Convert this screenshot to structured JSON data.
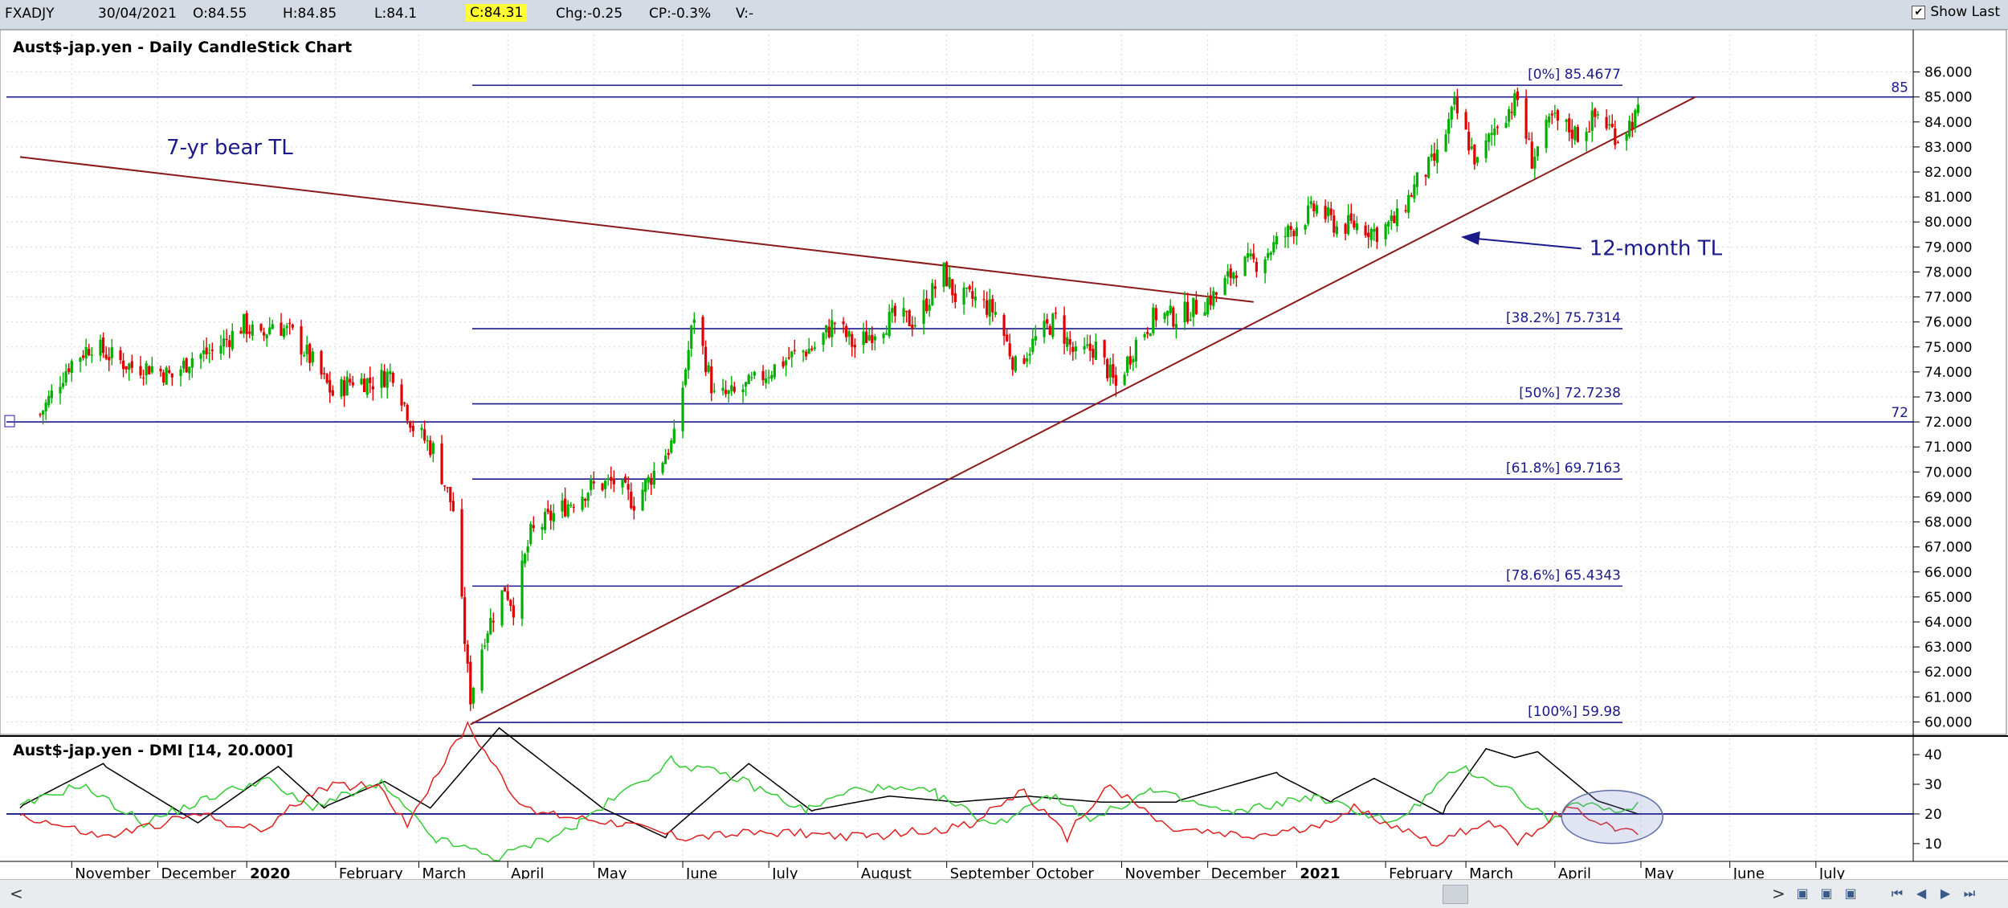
{
  "header": {
    "symbol": "FXADJY",
    "date": "30/04/2021",
    "open": "O:84.55",
    "high": "H:84.85",
    "low": "L:84.1",
    "close": "C:84.31",
    "change": "Chg:-0.25",
    "change_pct": "CP:-0.3%",
    "volume": "V:-",
    "show_last_label": "Show Last",
    "show_last_checked": true
  },
  "colors": {
    "up": "#00b000",
    "down": "#e00000",
    "fib": "#1a1a8c",
    "trendline": "#8b1a1a",
    "arrow": "#1a1a8c",
    "dmi_plus": "#33cc33",
    "dmi_minus": "#e02020",
    "adx": "#000000",
    "highlight": "#ffff33"
  },
  "chart_data": [
    {
      "type": "candlestick",
      "title": "Aust$-jap.yen - Daily CandleStick Chart",
      "ylim": [
        59.5,
        86.5
      ],
      "y_ticks": [
        "86.000",
        "85.000",
        "84.000",
        "83.000",
        "82.000",
        "81.000",
        "80.000",
        "79.000",
        "78.000",
        "77.000",
        "76.000",
        "75.000",
        "74.000",
        "73.000",
        "72.000",
        "71.000",
        "70.000",
        "69.000",
        "68.000",
        "67.000",
        "66.000",
        "65.000",
        "64.000",
        "63.000",
        "62.000",
        "61.000",
        "60.000"
      ],
      "x_month_labels": [
        "November",
        "December",
        "2020",
        "February",
        "March",
        "April",
        "May",
        "June",
        "July",
        "August",
        "September",
        "October",
        "November",
        "December",
        "2021",
        "February",
        "March",
        "April",
        "May",
        "June",
        "July"
      ],
      "close_path": [
        [
          "2019-10-21",
          72.3
        ],
        [
          "2019-10-31",
          74.3
        ],
        [
          "2019-11-08",
          75.1
        ],
        [
          "2019-11-15",
          74.6
        ],
        [
          "2019-11-22",
          74.2
        ],
        [
          "2019-11-29",
          74.2
        ],
        [
          "2019-12-06",
          73.8
        ],
        [
          "2019-12-13",
          74.6
        ],
        [
          "2019-12-20",
          74.8
        ],
        [
          "2019-12-31",
          75.9
        ],
        [
          "2020-01-06",
          75.3
        ],
        [
          "2020-01-10",
          76.0
        ],
        [
          "2020-01-17",
          75.5
        ],
        [
          "2020-01-24",
          74.4
        ],
        [
          "2020-01-31",
          73.1
        ],
        [
          "2020-02-07",
          73.7
        ],
        [
          "2020-02-14",
          73.6
        ],
        [
          "2020-02-21",
          74.0
        ],
        [
          "2020-02-28",
          71.8
        ],
        [
          "2020-03-06",
          70.9
        ],
        [
          "2020-03-13",
          68.5
        ],
        [
          "2020-03-18",
          62.0
        ],
        [
          "2020-03-19",
          61.0
        ],
        [
          "2020-03-24",
          63.5
        ],
        [
          "2020-03-31",
          65.4
        ],
        [
          "2020-04-03",
          64.6
        ],
        [
          "2020-04-09",
          67.5
        ],
        [
          "2020-04-17",
          68.3
        ],
        [
          "2020-04-24",
          68.9
        ],
        [
          "2020-04-30",
          69.4
        ],
        [
          "2020-05-08",
          69.6
        ],
        [
          "2020-05-15",
          68.8
        ],
        [
          "2020-05-22",
          70.0
        ],
        [
          "2020-05-29",
          71.3
        ],
        [
          "2020-06-05",
          76.3
        ],
        [
          "2020-06-12",
          73.0
        ],
        [
          "2020-06-19",
          73.1
        ],
        [
          "2020-06-26",
          73.6
        ],
        [
          "2020-07-03",
          74.2
        ],
        [
          "2020-07-10",
          74.7
        ],
        [
          "2020-07-17",
          75.0
        ],
        [
          "2020-07-24",
          76.0
        ],
        [
          "2020-07-31",
          75.0
        ],
        [
          "2020-08-07",
          75.7
        ],
        [
          "2020-08-14",
          76.2
        ],
        [
          "2020-08-21",
          76.0
        ],
        [
          "2020-08-31",
          78.0
        ],
        [
          "2020-09-04",
          77.0
        ],
        [
          "2020-09-11",
          76.9
        ],
        [
          "2020-09-18",
          76.4
        ],
        [
          "2020-09-25",
          74.2
        ],
        [
          "2020-10-02",
          75.3
        ],
        [
          "2020-10-09",
          76.1
        ],
        [
          "2020-10-16",
          74.6
        ],
        [
          "2020-10-23",
          75.0
        ],
        [
          "2020-10-30",
          73.4
        ],
        [
          "2020-11-06",
          75.2
        ],
        [
          "2020-11-13",
          76.3
        ],
        [
          "2020-11-20",
          76.2
        ],
        [
          "2020-11-27",
          76.6
        ],
        [
          "2020-12-04",
          77.1
        ],
        [
          "2020-12-11",
          78.2
        ],
        [
          "2020-12-18",
          78.4
        ],
        [
          "2020-12-31",
          79.8
        ],
        [
          "2021-01-08",
          80.6
        ],
        [
          "2021-01-15",
          79.8
        ],
        [
          "2021-01-22",
          79.9
        ],
        [
          "2021-01-29",
          79.6
        ],
        [
          "2021-02-05",
          80.1
        ],
        [
          "2021-02-12",
          81.6
        ],
        [
          "2021-02-19",
          82.6
        ],
        [
          "2021-02-25",
          84.6
        ],
        [
          "2021-03-05",
          82.3
        ],
        [
          "2021-03-12",
          84.0
        ],
        [
          "2021-03-19",
          84.9
        ],
        [
          "2021-03-24",
          82.5
        ],
        [
          "2021-03-31",
          84.1
        ],
        [
          "2021-04-09",
          83.5
        ],
        [
          "2021-04-16",
          84.3
        ],
        [
          "2021-04-23",
          83.4
        ],
        [
          "2021-04-30",
          84.31
        ]
      ],
      "horizontal_lines": [
        {
          "label": "85",
          "value": 85.0
        },
        {
          "label": "72",
          "value": 72.0
        }
      ],
      "fib_levels": [
        {
          "label": "[0%] 85.4677",
          "value": 85.4677
        },
        {
          "label": "[38.2%] 75.7314",
          "value": 75.7314
        },
        {
          "label": "[50%] 72.7238",
          "value": 72.7238
        },
        {
          "label": "[61.8%] 69.7163",
          "value": 69.7163
        },
        {
          "label": "[78.6%] 65.4343",
          "value": 65.4343
        },
        {
          "label": "[100%] 59.98",
          "value": 59.98
        }
      ],
      "trendlines": [
        {
          "name": "7-yr bear TL",
          "from": [
            "2019-10-14",
            82.6
          ],
          "to": [
            "2020-12-17",
            76.8
          ]
        },
        {
          "name": "12-month TL",
          "from": [
            "2020-03-19",
            59.9
          ],
          "to": [
            "2021-05-20",
            85.0
          ]
        }
      ],
      "annotations": [
        {
          "text": "7-yr bear TL",
          "at": [
            "2019-12-04",
            82.7
          ]
        },
        {
          "text": "12-month TL",
          "at": [
            "2021-04-13",
            79.0
          ],
          "arrow_to": [
            "2021-02-25",
            79.4
          ]
        }
      ]
    },
    {
      "type": "line",
      "title": "Aust$-jap.yen - DMI [14, 20.000]",
      "ylim": [
        4,
        46
      ],
      "y_ticks": [
        "40",
        "30",
        "20",
        "10"
      ],
      "reference_line": 20,
      "series": [
        {
          "key": "adx",
          "color": "#000000",
          "values": [
            [
              "2019-10-14",
              22
            ],
            [
              "2019-11-12",
              37
            ],
            [
              "2019-12-15",
              17
            ],
            [
              "2020-01-12",
              36
            ],
            [
              "2020-01-28",
              22
            ],
            [
              "2020-02-18",
              31
            ],
            [
              "2020-03-05",
              22
            ],
            [
              "2020-03-29",
              49
            ],
            [
              "2020-05-04",
              22
            ],
            [
              "2020-05-26",
              12
            ],
            [
              "2020-06-24",
              37
            ],
            [
              "2020-07-16",
              21
            ],
            [
              "2020-08-12",
              26
            ],
            [
              "2020-09-05",
              24
            ],
            [
              "2020-09-30",
              26
            ],
            [
              "2020-10-25",
              24
            ],
            [
              "2020-11-20",
              24
            ],
            [
              "2020-12-25",
              34
            ],
            [
              "2021-01-13",
              24
            ],
            [
              "2021-01-28",
              32
            ],
            [
              "2021-02-21",
              20
            ],
            [
              "2021-03-08",
              42
            ],
            [
              "2021-03-18",
              39
            ],
            [
              "2021-03-26",
              41
            ],
            [
              "2021-04-15",
              25
            ],
            [
              "2021-04-30",
              20
            ]
          ]
        },
        {
          "key": "plus_di",
          "color": "#33cc33",
          "values": [
            [
              "2019-10-14",
              22
            ],
            [
              "2019-11-04",
              30
            ],
            [
              "2019-11-26",
              17
            ],
            [
              "2019-12-18",
              25
            ],
            [
              "2020-01-08",
              32
            ],
            [
              "2020-01-23",
              22
            ],
            [
              "2020-02-17",
              30
            ],
            [
              "2020-03-06",
              12
            ],
            [
              "2020-03-29",
              5
            ],
            [
              "2020-04-25",
              16
            ],
            [
              "2020-05-28",
              38
            ],
            [
              "2020-06-20",
              32
            ],
            [
              "2020-07-14",
              21
            ],
            [
              "2020-08-02",
              29
            ],
            [
              "2020-08-28",
              27
            ],
            [
              "2020-09-18",
              16
            ],
            [
              "2020-10-06",
              27
            ],
            [
              "2020-10-23",
              18
            ],
            [
              "2020-11-11",
              28
            ],
            [
              "2020-12-10",
              20
            ],
            [
              "2021-01-06",
              26
            ],
            [
              "2021-01-23",
              21
            ],
            [
              "2021-02-05",
              17
            ],
            [
              "2021-02-27",
              36
            ],
            [
              "2021-03-17",
              28
            ],
            [
              "2021-03-30",
              18
            ],
            [
              "2021-04-11",
              24
            ],
            [
              "2021-04-22",
              20
            ],
            [
              "2021-04-30",
              24
            ]
          ]
        },
        {
          "key": "minus_di",
          "color": "#e02020",
          "values": [
            [
              "2019-10-14",
              20
            ],
            [
              "2019-11-12",
              12
            ],
            [
              "2019-12-16",
              20
            ],
            [
              "2020-01-06",
              14
            ],
            [
              "2020-01-26",
              29
            ],
            [
              "2020-02-16",
              30
            ],
            [
              "2020-02-26",
              16
            ],
            [
              "2020-03-18",
              50
            ],
            [
              "2020-04-07",
              21
            ],
            [
              "2020-05-11",
              17
            ],
            [
              "2020-06-01",
              12
            ],
            [
              "2020-07-06",
              14
            ],
            [
              "2020-08-03",
              12
            ],
            [
              "2020-09-09",
              16
            ],
            [
              "2020-09-28",
              28
            ],
            [
              "2020-10-13",
              12
            ],
            [
              "2020-10-28",
              30
            ],
            [
              "2020-11-17",
              15
            ],
            [
              "2020-12-15",
              12
            ],
            [
              "2021-01-06",
              15
            ],
            [
              "2021-01-21",
              22
            ],
            [
              "2021-02-19",
              10
            ],
            [
              "2021-03-09",
              18
            ],
            [
              "2021-03-19",
              10
            ],
            [
              "2021-04-05",
              22
            ],
            [
              "2021-04-21",
              16
            ],
            [
              "2021-04-30",
              13
            ]
          ]
        }
      ]
    }
  ],
  "dmi_highlight": {
    "center": [
      "2021-04-21",
      19
    ],
    "shape": "ellipse"
  },
  "scroll": {
    "left_arrow": "<",
    "right_arrow": ">"
  }
}
